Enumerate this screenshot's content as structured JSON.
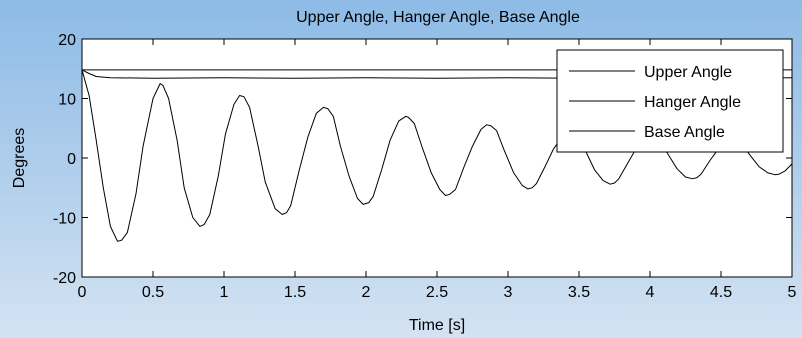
{
  "chart_data": {
    "type": "line",
    "title": "Upper Angle, Hanger Angle, Base Angle",
    "xlabel": "Time [s]",
    "ylabel": "Degrees",
    "xlim": [
      0,
      5
    ],
    "ylim": [
      -20,
      20
    ],
    "xticks": [
      0,
      0.5,
      1,
      1.5,
      2,
      2.5,
      3,
      3.5,
      4,
      4.5,
      5
    ],
    "yticks": [
      -20,
      -10,
      0,
      10,
      20
    ],
    "grid": false,
    "legend_position": "top-right",
    "line_color": "#000000",
    "series": [
      {
        "name": "Upper Angle",
        "x": [
          0,
          0.5,
          1,
          1.5,
          2,
          2.5,
          3,
          3.5,
          4,
          4.5,
          5
        ],
        "y": [
          14.8,
          14.8,
          14.8,
          14.8,
          14.8,
          14.8,
          14.8,
          14.8,
          14.8,
          14.8,
          14.8
        ]
      },
      {
        "name": "Hanger Angle",
        "x": [
          0,
          0.05,
          0.1,
          0.2,
          0.5,
          1,
          1.5,
          2,
          2.5,
          3,
          3.5,
          4,
          4.5,
          5
        ],
        "y": [
          14.8,
          14.2,
          13.7,
          13.5,
          13.4,
          13.5,
          13.4,
          13.5,
          13.4,
          13.5,
          13.4,
          13.5,
          13.4,
          13.5
        ]
      },
      {
        "name": "Base Angle",
        "x": [
          0,
          0.05,
          0.1,
          0.15,
          0.2,
          0.25,
          0.28,
          0.32,
          0.38,
          0.43,
          0.5,
          0.55,
          0.57,
          0.61,
          0.67,
          0.72,
          0.78,
          0.83,
          0.86,
          0.9,
          0.96,
          1.01,
          1.07,
          1.11,
          1.14,
          1.18,
          1.24,
          1.29,
          1.36,
          1.41,
          1.44,
          1.47,
          1.53,
          1.59,
          1.65,
          1.7,
          1.73,
          1.77,
          1.82,
          1.88,
          1.94,
          1.98,
          2.02,
          2.05,
          2.11,
          2.17,
          2.23,
          2.28,
          2.3,
          2.34,
          2.4,
          2.46,
          2.52,
          2.56,
          2.59,
          2.63,
          2.69,
          2.75,
          2.81,
          2.85,
          2.88,
          2.92,
          2.97,
          3.04,
          3.1,
          3.14,
          3.17,
          3.2,
          3.26,
          3.32,
          3.39,
          3.43,
          3.46,
          3.49,
          3.55,
          3.61,
          3.67,
          3.72,
          3.75,
          3.78,
          3.84,
          3.9,
          3.96,
          4.01,
          4.04,
          4.07,
          4.13,
          4.19,
          4.25,
          4.3,
          4.33,
          4.36,
          4.42,
          4.48,
          4.54,
          4.58,
          4.62,
          4.65,
          4.71,
          4.77,
          4.83,
          4.88,
          4.91,
          4.95,
          5
        ],
        "y": [
          14.8,
          10.5,
          3,
          -5,
          -11.5,
          -14,
          -13.8,
          -12.5,
          -6,
          2,
          10,
          12.5,
          12.2,
          10,
          3,
          -5,
          -10,
          -11.5,
          -11.2,
          -9.5,
          -3,
          4,
          9,
          10.5,
          10.3,
          8.5,
          2,
          -4,
          -8.5,
          -9.5,
          -9.2,
          -8,
          -2,
          3.5,
          7.5,
          8.5,
          8.3,
          7,
          2,
          -3,
          -6.8,
          -7.8,
          -7.5,
          -6.5,
          -2,
          3,
          6.2,
          7,
          6.8,
          5.8,
          1.5,
          -2.5,
          -5.3,
          -6.3,
          -6.1,
          -5.3,
          -1.5,
          2,
          4.8,
          5.6,
          5.4,
          4.6,
          1.5,
          -2.5,
          -4.6,
          -5.2,
          -5,
          -4.3,
          -1.5,
          1.5,
          3.8,
          4.4,
          4.2,
          3.5,
          1,
          -2,
          -3.8,
          -4.4,
          -4.2,
          -3.5,
          -1,
          1.5,
          3.1,
          3.6,
          3.4,
          2.8,
          0.5,
          -1.8,
          -3.2,
          -3.5,
          -3.3,
          -2.7,
          -0.5,
          1.5,
          2.5,
          2.8,
          2.7,
          2.2,
          0.3,
          -1.5,
          -2.5,
          -2.8,
          -2.7,
          -2.2,
          -1
        ]
      }
    ]
  }
}
